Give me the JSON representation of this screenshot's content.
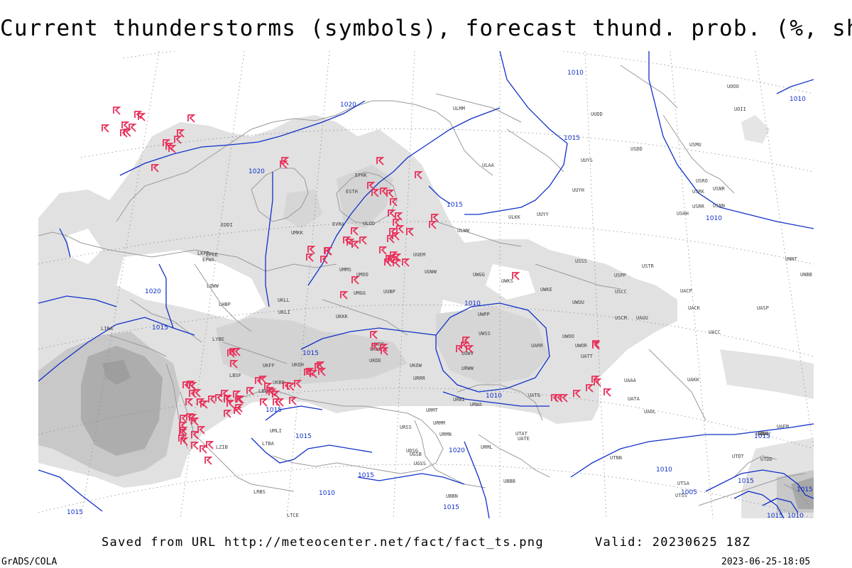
{
  "title": "Current thunderstorms (symbols), forecast thund. prob. (%, shaded)",
  "footer": {
    "saved_from": "Saved from URL http://meteocenter.net/fact/fact_ts.png",
    "valid": "Valid: 20230625 18Z",
    "software": "GrADS/COLA",
    "timestamp": "2023-06-25-18:05"
  },
  "colors": {
    "isobar": "#1030c8",
    "thunderstorm_symbol": "#e8305a",
    "probability_light": "#dcdcdc",
    "probability_medium": "#c4c4c4",
    "probability_dark": "#a8a8a8",
    "coastline": "#9a9a9a",
    "grid": "#8a8a8a",
    "station_label": "#444444"
  },
  "isobar_labels": [
    "1010",
    "1020",
    "1015",
    "1020",
    "1015",
    "1010",
    "1010",
    "1015",
    "1020",
    "1015",
    "1015",
    "1010",
    "1015",
    "1015",
    "1010",
    "1010",
    "1015",
    "1020",
    "1015",
    "1015",
    "1005",
    "1015",
    "1010",
    "1015",
    "1015",
    "1010",
    "1015"
  ],
  "station_labels": [
    "ULAA",
    "ULKK",
    "UUYY",
    "ULWW",
    "UUEM",
    "ULOO",
    "EVRA",
    "UMKK",
    "UMMS",
    "UMOO",
    "UMGG",
    "UUBP",
    "UUWW",
    "UWGG",
    "UWKS",
    "UWKE",
    "UWUU",
    "UWPP",
    "UWSS",
    "UUWV",
    "URWW",
    "UARR",
    "URWI",
    "URRR",
    "UKOW",
    "UKDE",
    "UKHH",
    "UKOO",
    "UKKK",
    "UKLL",
    "UKLI",
    "UKBB",
    "UKFF",
    "UKOH",
    "URWA",
    "URMT",
    "URMM",
    "URMN",
    "URML",
    "URSS",
    "UGSB",
    "UGSS",
    "UDSG",
    "UBBN",
    "UBBB",
    "UTAT",
    "UATE",
    "UATG",
    "UATT",
    "UAOL",
    "UATA",
    "UAKK",
    "UACC",
    "UASP",
    "UACK",
    "UACP",
    "UAAA",
    "UTSA",
    "UTSS",
    "UTNN",
    "USSS",
    "USPP",
    "USCC",
    "USCM",
    "UAUU",
    "USTR",
    "USRR",
    "USRK",
    "USRO",
    "USNN",
    "USNR",
    "USMU",
    "USDD",
    "USHH",
    "UNNT",
    "UNBB",
    "UUYS",
    "UUYH",
    "UUDD",
    "ULMM",
    "UOOO",
    "UOII",
    "EPWA",
    "EPKK",
    "EDDI",
    "LKPR",
    "LOWW",
    "LHBP",
    "LYBE",
    "LBSF",
    "LBBG",
    "LIRA",
    "LTBA",
    "LTCE",
    "UTDD",
    "UWOO",
    "UWOR",
    "UAFM",
    "UTDT",
    "UDAU",
    "LRBS",
    "UMLI",
    "ESTH",
    "EFHK",
    "UUDP",
    "LZIB"
  ],
  "map": {
    "projection": "polar-stereographic",
    "region": "Europe and western Russia",
    "grid": "dotted lat/lon lines",
    "shading_levels": [
      "light",
      "medium",
      "dark"
    ]
  }
}
